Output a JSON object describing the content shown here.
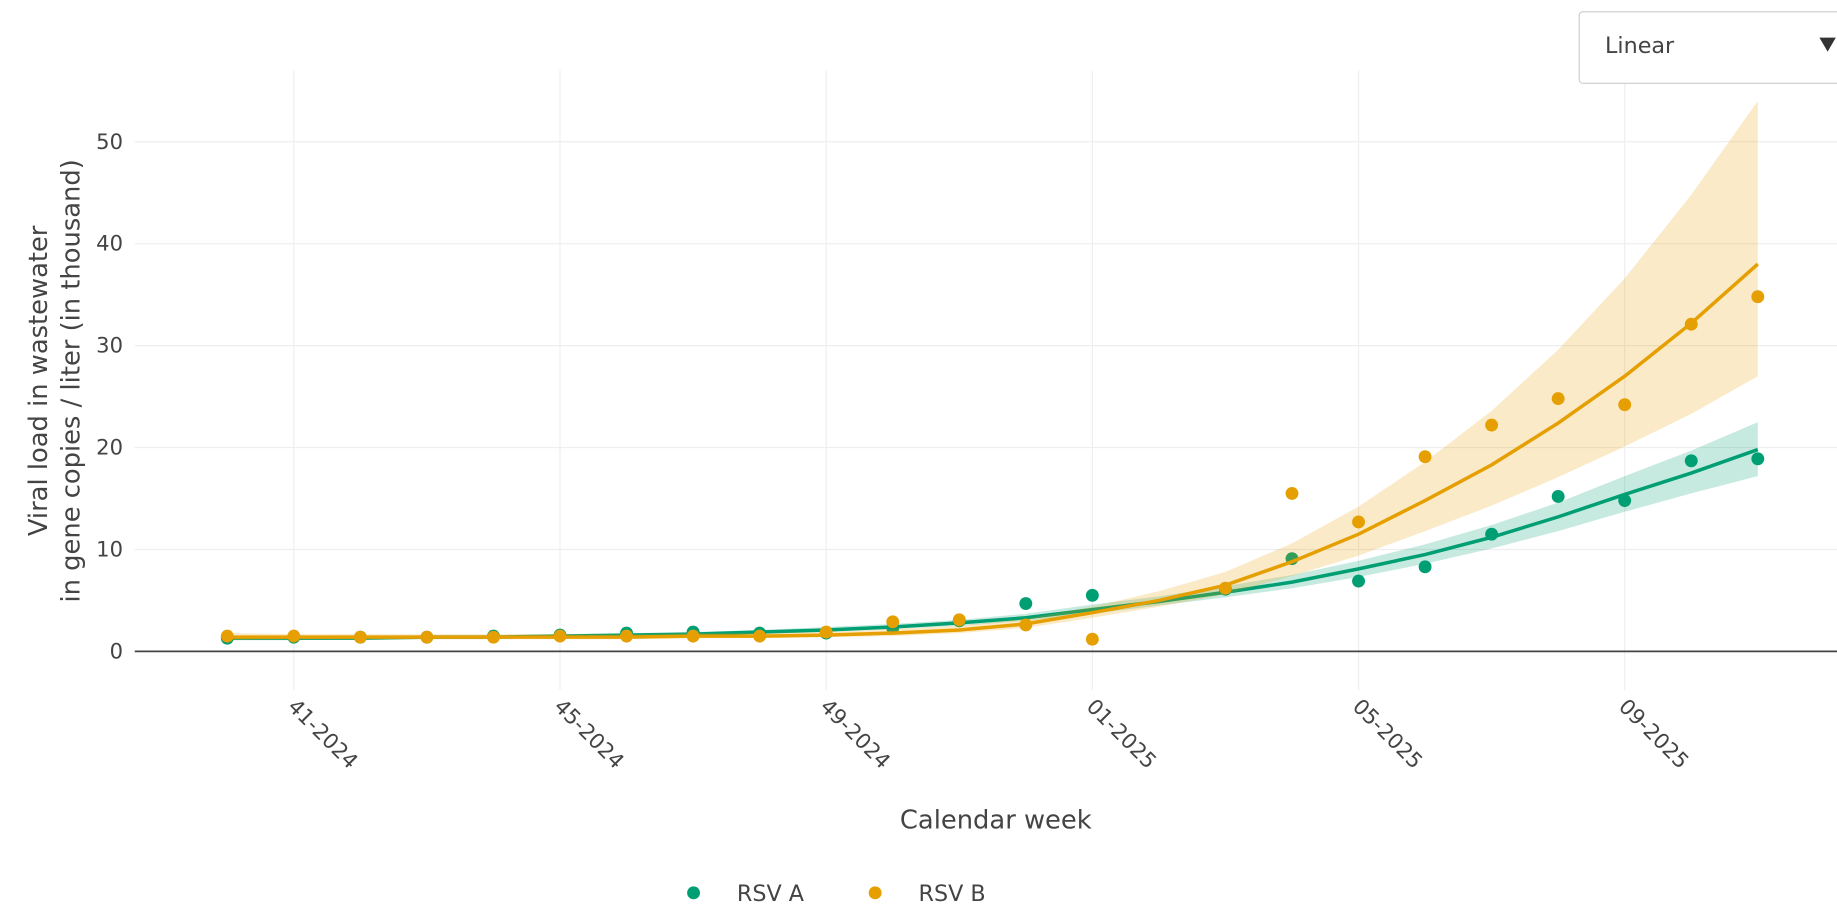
{
  "dropdown": "Linear",
  "chart_data": {
    "type": "scatter",
    "x_label": "Calendar week",
    "y_label": [
      "Viral load in wastewater",
      "in gene copies / liter (in thousand)"
    ],
    "categories": [
      null,
      "41-2024",
      null,
      null,
      null,
      "45-2024",
      null,
      null,
      null,
      "49-2024",
      null,
      null,
      null,
      "01-2025",
      null,
      null,
      null,
      "05-2025",
      null,
      null,
      null,
      "09-2025",
      null,
      null
    ],
    "ylim": [
      -3.8,
      57
    ],
    "yticks": [
      0,
      10,
      20,
      30,
      40,
      50
    ],
    "grid": true,
    "series": [
      {
        "name": "RSV A",
        "color": "#009e73",
        "values": [
          1.3,
          1.4,
          1.4,
          1.4,
          1.5,
          1.6,
          1.8,
          1.9,
          1.8,
          1.8,
          2.3,
          3.0,
          4.7,
          5.5,
          null,
          6.1,
          9.1,
          6.9,
          8.3,
          11.5,
          15.2,
          14.8,
          18.7,
          18.9
        ],
        "fit": [
          1.3,
          1.3,
          1.3,
          1.4,
          1.4,
          1.5,
          1.6,
          1.7,
          1.9,
          2.1,
          2.4,
          2.8,
          3.3,
          4.1,
          4.9,
          5.8,
          6.8,
          8.1,
          9.5,
          11.2,
          13.2,
          15.4,
          17.5,
          19.8
        ],
        "lower": [
          1.1,
          1.1,
          1.2,
          1.2,
          1.3,
          1.3,
          1.4,
          1.5,
          1.7,
          1.9,
          2.2,
          2.5,
          3.0,
          3.7,
          4.5,
          5.3,
          6.2,
          7.3,
          8.6,
          10.1,
          11.8,
          13.7,
          15.5,
          17.2
        ],
        "upper": [
          1.5,
          1.5,
          1.5,
          1.6,
          1.6,
          1.7,
          1.8,
          1.9,
          2.1,
          2.4,
          2.7,
          3.1,
          3.7,
          4.6,
          5.4,
          6.4,
          7.5,
          8.9,
          10.5,
          12.4,
          14.6,
          17.2,
          19.7,
          22.5
        ]
      },
      {
        "name": "RSV B",
        "color": "#e69f00",
        "values": [
          1.5,
          1.5,
          1.4,
          1.4,
          1.4,
          1.5,
          1.5,
          1.5,
          1.5,
          1.9,
          2.9,
          3.1,
          2.6,
          1.2,
          null,
          6.2,
          15.5,
          12.7,
          19.1,
          22.2,
          24.8,
          24.2,
          32.1,
          34.8
        ],
        "fit": [
          1.4,
          1.4,
          1.4,
          1.4,
          1.4,
          1.4,
          1.4,
          1.5,
          1.5,
          1.6,
          1.8,
          2.1,
          2.7,
          3.8,
          5.0,
          6.5,
          8.8,
          11.5,
          14.8,
          18.3,
          22.4,
          27.0,
          32.2,
          38.0
        ],
        "lower": [
          1.1,
          1.2,
          1.2,
          1.2,
          1.2,
          1.2,
          1.2,
          1.3,
          1.3,
          1.4,
          1.5,
          1.8,
          2.3,
          3.3,
          4.4,
          5.6,
          7.4,
          9.4,
          11.8,
          14.3,
          17.1,
          20.1,
          23.3,
          27.0
        ],
        "upper": [
          1.8,
          1.7,
          1.7,
          1.7,
          1.7,
          1.7,
          1.7,
          1.8,
          1.8,
          1.9,
          2.2,
          2.5,
          3.2,
          4.4,
          5.9,
          7.8,
          10.6,
          14.2,
          18.6,
          23.6,
          29.6,
          36.6,
          44.8,
          54.0
        ]
      }
    ]
  }
}
